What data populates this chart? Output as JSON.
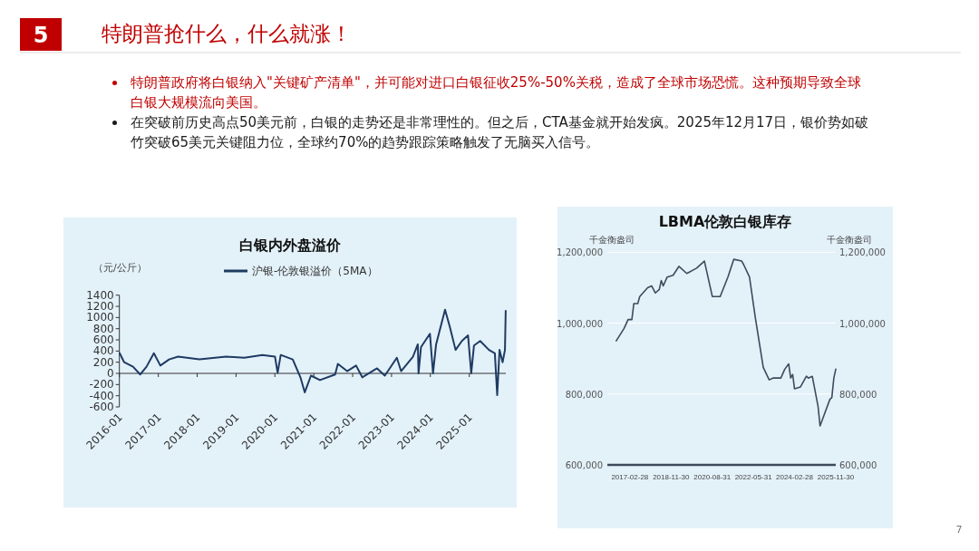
{
  "chart_data": [
    {
      "type": "other",
      "title": "特朗普抢什么，什么就涨！",
      "annotations": [
        "5",
        "特朗普政府将白银纳入\"关键矿产清单\"，并可能对进口白银征收25%-50%关税，造成了全球市场恐慌。这种预期导致全球白银大规模流向美国。",
        "在突破前历史高点50美元前，白银的走势还是非常理性的。但之后，CTA基金就开始发疯。2025年12月17日，银价势如破竹突破65美元关键阻力位，全球约70%的趋势跟踪策略触发了无脑买入信号。",
        "7"
      ]
    },
    {
      "type": "line",
      "title": "白银内外盘溢价",
      "ylabel": "（元/公斤）",
      "legend": "top",
      "xlim": [
        "2016-01-01",
        "2025-12-10"
      ],
      "ylim": [
        -600,
        1400
      ],
      "yticks": [
        -600,
        -400,
        -200,
        0,
        200,
        400,
        600,
        800,
        1000,
        1200,
        1400
      ],
      "xticks": [
        "2016-01",
        "2017-01",
        "2018-01",
        "2019-01",
        "2020-01",
        "2021-01",
        "2022-01",
        "2023-01",
        "2024-01",
        "2025-01"
      ],
      "series": [
        {
          "name": "沪银-伦敦银溢价（5MA）",
          "color": "#1f3b63",
          "x": [
            "2016-01-04",
            "2016-02-15",
            "2016-05-08",
            "2016-07-15",
            "2016-09-12",
            "2016-11-20",
            "2017-01-20",
            "2017-04-12",
            "2017-07-05",
            "2018-01-22",
            "2018-10-01",
            "2019-03-20",
            "2019-09-05",
            "2020-01-02",
            "2020-01-27",
            "2020-02-25",
            "2020-06-17",
            "2020-08-28",
            "2020-10-08",
            "2020-12-05",
            "2021-02-28",
            "2021-07-20",
            "2021-08-15",
            "2021-11-10",
            "2022-02-02",
            "2022-04-01",
            "2022-08-18",
            "2022-10-30",
            "2023-02-20",
            "2023-04-01",
            "2023-07-22",
            "2023-09-05",
            "2023-09-12",
            "2023-10-05",
            "2023-12-28",
            "2024-01-26",
            "2024-02-24",
            "2024-05-18",
            "2024-07-01",
            "2024-08-25",
            "2024-10-23",
            "2024-12-20",
            "2025-01-19",
            "2025-02-14",
            "2025-04-13",
            "2025-07-05",
            "2025-08-29",
            "2025-09-20",
            "2025-10-12",
            "2025-11-10",
            "2025-12-02",
            "2025-12-09"
          ],
          "values": [
            360,
            200,
            120,
            -20,
            120,
            360,
            140,
            250,
            300,
            250,
            300,
            280,
            330,
            300,
            10,
            330,
            250,
            -70,
            -340,
            -40,
            -120,
            -20,
            170,
            40,
            140,
            -70,
            90,
            -40,
            280,
            40,
            300,
            520,
            0,
            470,
            710,
            0,
            520,
            1140,
            840,
            420,
            580,
            680,
            0,
            500,
            580,
            420,
            360,
            -390,
            420,
            200,
            420,
            1120
          ]
        }
      ]
    },
    {
      "type": "line",
      "title": "LBMA伦敦白银库存",
      "ylabel": "千金衡盎司",
      "y2label": "千金衡盎司",
      "grid": "y",
      "xlim": [
        "2016-03-15",
        "2025-11-30"
      ],
      "ylim": [
        600000,
        1200000
      ],
      "yticks": [
        {
          "value": 600000,
          "label": "600,000"
        },
        {
          "value": 800000,
          "label": "800,000"
        },
        {
          "value": 1000000,
          "label": "1,000,000"
        },
        {
          "value": 1200000,
          "label": "1,200,000"
        }
      ],
      "y2lim": [
        600000,
        1200000
      ],
      "y2ticks": [
        {
          "value": 600000,
          "label": "600,000"
        },
        {
          "value": 800000,
          "label": "800,000"
        },
        {
          "value": 1000000,
          "label": "1,000,000"
        },
        {
          "value": 1200000,
          "label": "1,200,000"
        }
      ],
      "xticks": [
        "2017-02-28",
        "2018-11-30",
        "2020-08-31",
        "2022-05-31",
        "2024-02-28",
        "2025-11-30"
      ],
      "series": [
        {
          "color": "#3d4b5c",
          "x": [
            "2016-07-31",
            "2016-11-30",
            "2017-01-31",
            "2017-03-31",
            "2017-04-30",
            "2017-06-30",
            "2017-07-31",
            "2017-11-30",
            "2018-01-31",
            "2018-03-31",
            "2018-05-31",
            "2018-06-30",
            "2018-07-31",
            "2018-09-30",
            "2018-12-31",
            "2019-03-31",
            "2019-07-31",
            "2019-12-31",
            "2020-04-30",
            "2020-05-31",
            "2020-08-31",
            "2020-12-31",
            "2021-04-30",
            "2021-07-31",
            "2021-11-30",
            "2021-12-31",
            "2022-03-31",
            "2022-06-30",
            "2022-10-31",
            "2023-01-31",
            "2023-03-31",
            "2023-07-31",
            "2023-09-30",
            "2023-11-30",
            "2023-12-31",
            "2024-01-31",
            "2024-02-28",
            "2024-05-31",
            "2024-08-31",
            "2024-09-30",
            "2024-11-30",
            "2025-02-28",
            "2025-03-31",
            "2025-05-31",
            "2025-08-31",
            "2025-09-30",
            "2025-10-31",
            "2025-11-30"
          ],
          "values": [
            950000,
            985000,
            1010000,
            1010000,
            1055000,
            1055000,
            1075000,
            1100000,
            1105000,
            1085000,
            1095000,
            1120000,
            1105000,
            1130000,
            1135000,
            1160000,
            1140000,
            1155000,
            1175000,
            1150000,
            1075000,
            1075000,
            1130000,
            1180000,
            1175000,
            1165000,
            1130000,
            1015000,
            875000,
            840000,
            845000,
            845000,
            870000,
            885000,
            845000,
            855000,
            815000,
            820000,
            850000,
            845000,
            850000,
            765000,
            710000,
            740000,
            785000,
            790000,
            845000,
            870000
          ]
        }
      ]
    }
  ]
}
